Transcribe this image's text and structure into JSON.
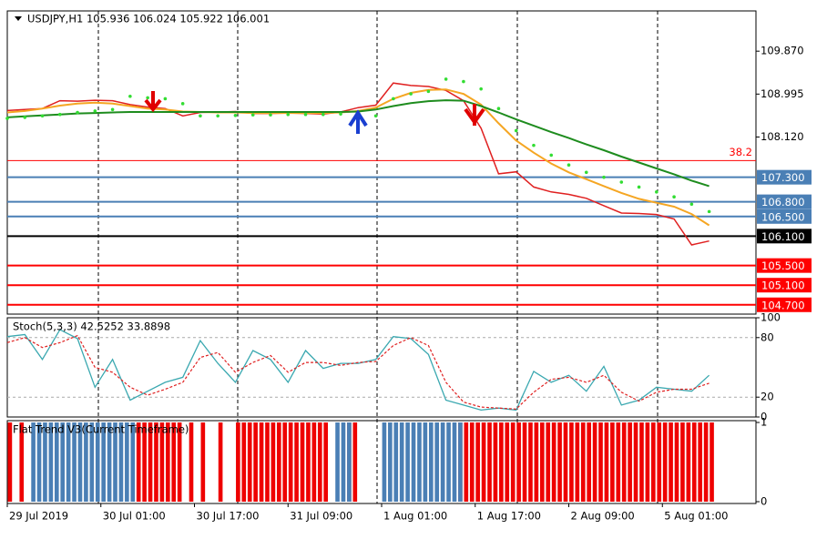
{
  "chart_data": [
    {
      "type": "line",
      "title": "USDJPY,H1  105.936 106.024 105.922 106.001",
      "x": [
        0,
        3,
        6,
        9,
        12,
        15,
        18,
        21,
        24,
        27,
        30,
        33,
        36,
        39,
        42,
        45,
        48,
        51,
        54,
        57,
        60,
        63,
        66,
        69,
        72,
        75,
        78,
        81,
        84,
        87,
        90,
        93,
        96,
        99,
        102,
        105,
        108,
        111,
        114,
        117,
        120
      ],
      "xlim": [
        0,
        128
      ],
      "ylim": [
        104.51,
        110.69
      ],
      "yticks": [
        {
          "value": 109.87,
          "label": "109.870"
        },
        {
          "value": 108.995,
          "label": "108.995"
        },
        {
          "value": 108.12,
          "label": "108.120"
        }
      ],
      "series": [
        {
          "color": "#e02020",
          "style": "line",
          "width": 1.5,
          "values": [
            108.66,
            108.68,
            108.7,
            108.86,
            108.85,
            108.87,
            108.86,
            108.78,
            108.73,
            108.7,
            108.55,
            108.62,
            108.63,
            108.64,
            108.6,
            108.6,
            108.61,
            108.6,
            108.59,
            108.63,
            108.72,
            108.77,
            109.22,
            109.17,
            109.15,
            109.07,
            108.86,
            108.3,
            107.37,
            107.41,
            107.1,
            107.0,
            106.95,
            106.87,
            106.72,
            106.57,
            106.56,
            106.54,
            106.45,
            105.92,
            106.0
          ]
        },
        {
          "color": "#f5a623",
          "style": "line",
          "width": 2,
          "values": [
            108.62,
            108.65,
            108.7,
            108.76,
            108.8,
            108.82,
            108.8,
            108.75,
            108.7,
            108.68,
            108.64,
            108.63,
            108.62,
            108.62,
            108.61,
            108.61,
            108.61,
            108.61,
            108.61,
            108.62,
            108.65,
            108.72,
            108.9,
            109.02,
            109.08,
            109.09,
            109.0,
            108.78,
            108.4,
            108.05,
            107.8,
            107.58,
            107.4,
            107.26,
            107.12,
            106.98,
            106.86,
            106.78,
            106.7,
            106.55,
            106.32
          ]
        },
        {
          "color": "#1e8c1e",
          "style": "line",
          "width": 2,
          "values": [
            108.52,
            108.54,
            108.56,
            108.58,
            108.6,
            108.61,
            108.62,
            108.63,
            108.63,
            108.63,
            108.63,
            108.63,
            108.63,
            108.63,
            108.63,
            108.63,
            108.63,
            108.63,
            108.63,
            108.63,
            108.64,
            108.68,
            108.75,
            108.81,
            108.85,
            108.87,
            108.86,
            108.75,
            108.62,
            108.48,
            108.35,
            108.22,
            108.1,
            107.97,
            107.85,
            107.72,
            107.6,
            107.48,
            107.36,
            107.23,
            107.12
          ]
        },
        {
          "color": "#33dd33",
          "style": "dots",
          "values": [
            108.5,
            108.52,
            108.55,
            108.58,
            108.62,
            108.65,
            108.68,
            108.95,
            108.92,
            108.9,
            108.8,
            108.55,
            108.55,
            108.56,
            108.57,
            108.57,
            108.58,
            108.58,
            108.58,
            108.59,
            108.45,
            108.55,
            108.9,
            109.0,
            109.05,
            109.3,
            109.25,
            109.1,
            108.7,
            108.25,
            107.95,
            107.75,
            107.55,
            107.4,
            107.3,
            107.2,
            107.1,
            107.0,
            106.9,
            106.75,
            106.6
          ]
        }
      ],
      "levels": [
        {
          "value": 107.3,
          "label": "107.300",
          "color": "#4a7fb5"
        },
        {
          "value": 106.8,
          "label": "106.800",
          "color": "#4a7fb5"
        },
        {
          "value": 106.5,
          "label": "106.500",
          "color": "#4a7fb5"
        },
        {
          "value": 106.1,
          "label": "106.100",
          "color": "#000000"
        },
        {
          "value": 105.5,
          "label": "105.500",
          "color": "#ff0000"
        },
        {
          "value": 105.1,
          "label": "105.100",
          "color": "#ff0000"
        },
        {
          "value": 104.7,
          "label": "104.700",
          "color": "#ff0000"
        }
      ],
      "fibo": {
        "value": 107.64,
        "label": "38.2",
        "color": "#ff0000"
      }
    },
    {
      "type": "line",
      "title": "Stoch(5,3,3) 42.5252 33.8898",
      "x": [
        0,
        3,
        6,
        9,
        12,
        15,
        18,
        21,
        24,
        27,
        30,
        33,
        36,
        39,
        42,
        45,
        48,
        51,
        54,
        57,
        60,
        63,
        66,
        69,
        72,
        75,
        78,
        81,
        84,
        87,
        90,
        93,
        96,
        99,
        102,
        105,
        108,
        111,
        114,
        117,
        120
      ],
      "xlim": [
        0,
        128
      ],
      "ylim": [
        0,
        100
      ],
      "yticks": [
        0,
        20,
        80,
        100
      ],
      "levels": [
        20,
        80
      ],
      "series": [
        {
          "color": "#3aa8b0",
          "style": "line",
          "width": 1.3,
          "values": [
            81,
            83,
            58,
            88,
            79,
            30,
            58,
            17,
            26,
            35,
            40,
            77,
            54,
            35,
            67,
            58,
            35,
            67,
            49,
            54,
            54,
            58,
            81,
            79,
            63,
            17,
            12,
            7,
            9,
            7,
            46,
            35,
            42,
            26,
            51,
            12,
            17,
            30,
            28,
            26,
            42
          ]
        },
        {
          "color": "#e02020",
          "style": "dash",
          "width": 1.2,
          "values": [
            75,
            80,
            70,
            75,
            82,
            50,
            45,
            30,
            22,
            28,
            35,
            60,
            65,
            45,
            55,
            62,
            45,
            55,
            55,
            52,
            55,
            56,
            72,
            80,
            72,
            35,
            15,
            10,
            9,
            8,
            25,
            38,
            40,
            35,
            42,
            25,
            16,
            25,
            28,
            28,
            34
          ]
        }
      ]
    },
    {
      "type": "bar",
      "title": "Flat Trend V3(Current Timeframe)",
      "xlim": [
        0,
        128
      ],
      "ylim": [
        0,
        1
      ],
      "yticks": [
        0,
        1
      ],
      "xticks": [
        {
          "value": 0,
          "label": "29 Jul 2019"
        },
        {
          "value": 16,
          "label": "30 Jul 01:00"
        },
        {
          "value": 32,
          "label": "30 Jul 17:00"
        },
        {
          "value": 48,
          "label": "31 Jul 09:00"
        },
        {
          "value": 64,
          "label": "1 Aug 01:00"
        },
        {
          "value": 80,
          "label": "1 Aug 17:00"
        },
        {
          "value": 96,
          "label": "2 Aug 09:00"
        },
        {
          "value": 112,
          "label": "5 Aug 01:00"
        }
      ],
      "series": [
        {
          "color": "#ee0000",
          "values": [
            1,
            0,
            1,
            0,
            0,
            0,
            0,
            0,
            0,
            0,
            0,
            0,
            0,
            0,
            0,
            0,
            0,
            0,
            0,
            0,
            0,
            0,
            1,
            1,
            1,
            1,
            1,
            1,
            1,
            1,
            0,
            1,
            0,
            1,
            0,
            0,
            1,
            0,
            0,
            1,
            1,
            1,
            1,
            1,
            1,
            1,
            1,
            1,
            1,
            1,
            1,
            1,
            1,
            1,
            1,
            0,
            0,
            0,
            1,
            1,
            0,
            0,
            0,
            0,
            0,
            0,
            0,
            0,
            0,
            0,
            0,
            0,
            0,
            0,
            0,
            0,
            0,
            1,
            1,
            1,
            1,
            1,
            1,
            1,
            1,
            1,
            1,
            1,
            1,
            1,
            1,
            1,
            1,
            1,
            1,
            1,
            1,
            1,
            1,
            1,
            1,
            1,
            1,
            1,
            1,
            1,
            1,
            1,
            1,
            1,
            1,
            1,
            1,
            1,
            1,
            1,
            1,
            1,
            1,
            1,
            1
          ]
        },
        {
          "color": "#4a7fb5",
          "values": [
            0,
            0,
            0,
            0,
            1,
            1,
            1,
            1,
            1,
            1,
            1,
            1,
            1,
            1,
            1,
            1,
            1,
            1,
            1,
            1,
            1,
            1,
            0,
            0,
            0,
            0,
            0,
            0,
            0,
            0,
            0,
            0,
            0,
            0,
            0,
            0,
            0,
            0,
            0,
            0,
            0,
            0,
            0,
            0,
            0,
            0,
            0,
            0,
            0,
            0,
            0,
            0,
            0,
            0,
            0,
            0,
            1,
            1,
            1,
            0,
            0,
            0,
            0,
            0,
            1,
            1,
            1,
            1,
            1,
            1,
            1,
            1,
            1,
            1,
            1,
            1,
            1,
            1,
            0,
            0,
            0,
            0,
            0,
            0,
            0,
            0,
            0,
            0,
            0,
            0,
            0,
            0,
            0,
            0,
            0,
            0,
            0,
            0,
            0,
            0,
            0,
            0,
            0,
            0,
            0,
            0,
            0,
            0,
            0,
            0,
            0,
            0,
            0,
            0,
            0,
            0,
            0,
            0,
            0,
            0,
            0
          ]
        }
      ]
    }
  ]
}
